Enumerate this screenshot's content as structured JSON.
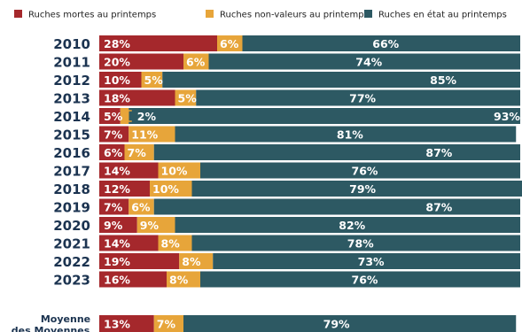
{
  "colors": {
    "dead": "#a5282c",
    "nonvalue": "#e7a53a",
    "good": "#2d5963",
    "text": "#1b3350"
  },
  "chart_data": {
    "type": "bar",
    "orientation": "horizontal",
    "stacked": true,
    "percent": true,
    "legend": "top",
    "xlim": [
      0,
      100
    ],
    "categories": [
      "2010",
      "2011",
      "2012",
      "2013",
      "2014",
      "2015",
      "2016",
      "2017",
      "2018",
      "2019",
      "2020",
      "2021",
      "2022",
      "2023"
    ],
    "series": [
      {
        "name": "Ruches mortes au printemps",
        "color": "#a5282c",
        "values": [
          28,
          20,
          10,
          18,
          5,
          7,
          6,
          14,
          12,
          7,
          9,
          14,
          19,
          16
        ],
        "labels": [
          "28%",
          "20%",
          "10%",
          "18%",
          "5%",
          "7%",
          "6%",
          "14%",
          "12%",
          "7%",
          "9%",
          "14%",
          "19%",
          "16%"
        ]
      },
      {
        "name": "Ruches non-valeurs au printemps",
        "color": "#e7a53a",
        "values": [
          6,
          6,
          5,
          5,
          2,
          11,
          7,
          10,
          10,
          6,
          9,
          8,
          8,
          8
        ],
        "labels": [
          "6%",
          "6%",
          "5%",
          "5%",
          "2%",
          "11%",
          "7%",
          "10%",
          "10%",
          "6%",
          "9%",
          "8%",
          "8%",
          "8%"
        ]
      },
      {
        "name": "Ruches en état au printemps",
        "color": "#2d5963",
        "values": [
          66,
          74,
          85,
          77,
          93,
          81,
          87,
          76,
          79,
          87,
          82,
          78,
          73,
          76
        ],
        "labels": [
          "66%",
          "74%",
          "85%",
          "77%",
          "93%",
          "81%",
          "87%",
          "76%",
          "79%",
          "87%",
          "82%",
          "78%",
          "73%",
          "76%"
        ]
      }
    ],
    "average": {
      "label_lines": [
        "Moyenne",
        "des Moyennes"
      ],
      "values": [
        13,
        7,
        79
      ],
      "labels": [
        "13%",
        "7%",
        "79%"
      ]
    }
  }
}
